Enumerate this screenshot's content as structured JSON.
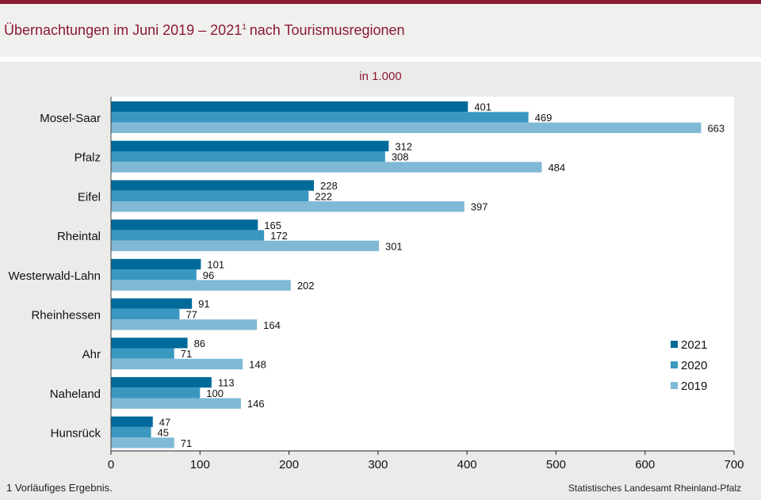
{
  "title": {
    "main": "Übernachtungen im Juni 2019 – 2021",
    "sup": "1",
    "rest": "nach Tourismusregionen"
  },
  "unit_label": "in 1.000",
  "footnote": "1 Vorläufiges Ergebnis.",
  "source": "Statistisches Landesamt Rheinland-Pfalz",
  "chart_data": {
    "type": "bar",
    "orientation": "horizontal",
    "categories": [
      "Mosel-Saar",
      "Pfalz",
      "Eifel",
      "Rheintal",
      "Westerwald-Lahn",
      "Rheinhessen",
      "Ahr",
      "Naheland",
      "Hunsrück"
    ],
    "series": [
      {
        "name": "2021",
        "color": "#006b9b",
        "values": [
          401,
          312,
          228,
          165,
          101,
          91,
          86,
          113,
          47
        ]
      },
      {
        "name": "2020",
        "color": "#3a97c0",
        "values": [
          469,
          308,
          222,
          172,
          96,
          77,
          71,
          100,
          45
        ]
      },
      {
        "name": "2019",
        "color": "#80b9d6",
        "values": [
          663,
          484,
          397,
          301,
          202,
          164,
          148,
          146,
          71
        ]
      }
    ],
    "xlim": [
      0,
      700
    ],
    "xticks": [
      0,
      100,
      200,
      300,
      400,
      500,
      600,
      700
    ],
    "legend_position": "right"
  }
}
